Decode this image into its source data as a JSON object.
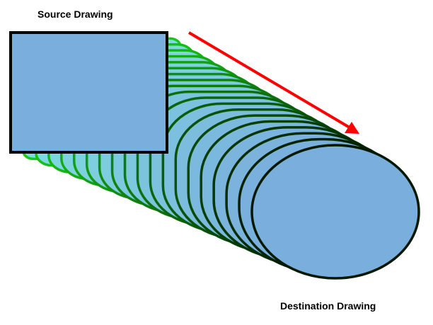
{
  "labels": {
    "source": "Source Drawing",
    "destination": "Destination Drawing"
  },
  "colors": {
    "shape_fill_start": "#7fdde0",
    "shape_fill_end": "#7aaedd",
    "outline_start": "#19d219",
    "outline_end": "#001800",
    "arrow": "#ff0000",
    "source_outline": "#000000"
  },
  "morph": {
    "intermediate_steps": 18
  }
}
